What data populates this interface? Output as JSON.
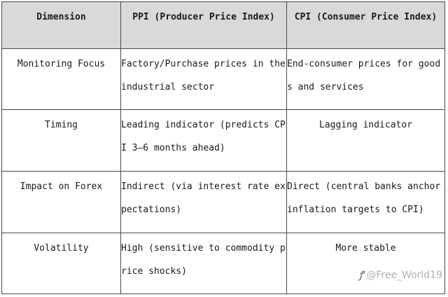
{
  "table": {
    "headers": {
      "dimension": "Dimension",
      "ppi": "PPI (Producer Price Index)",
      "cpi": "CPI (Consumer Price Index)"
    },
    "rows": [
      {
        "dimension": "Monitoring Focus",
        "ppi": "Factory/Purchase prices in the industrial sector",
        "cpi": "End-consumer prices for goods and services"
      },
      {
        "dimension": "Timing",
        "ppi": "Leading indicator (predicts CPI 3–6 months ahead)",
        "cpi": "Lagging indicator"
      },
      {
        "dimension": "Impact on Forex",
        "ppi": "Indirect (via interest rate expectations)",
        "cpi": "Direct (central banks anchor inflation targets to CPI)"
      },
      {
        "dimension": "Volatility",
        "ppi": "High (sensitive to commodity price shocks)",
        "cpi": "More stable"
      }
    ]
  },
  "watermark": {
    "text": "@Free_World19"
  }
}
